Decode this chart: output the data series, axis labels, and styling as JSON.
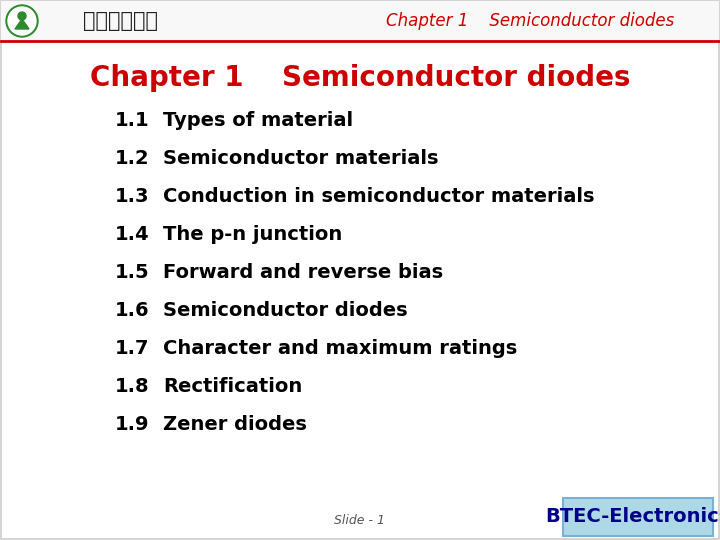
{
  "header_title": "Chapter 1    Semiconductor diodes",
  "header_title_color": "#cc0000",
  "main_title": "Chapter 1    Semiconductor diodes",
  "main_title_color": "#cc0000",
  "main_title_fontsize": 20,
  "items": [
    {
      "num": "1.1",
      "text": "Types of material"
    },
    {
      "num": "1.2",
      "text": "Semiconductor materials"
    },
    {
      "num": "1.3",
      "text": "Conduction in semiconductor materials"
    },
    {
      "num": "1.4",
      "text": "The p-n junction"
    },
    {
      "num": "1.5",
      "text": "Forward and reverse bias"
    },
    {
      "num": "1.6",
      "text": "Semiconductor diodes"
    },
    {
      "num": "1.7",
      "text": "Character and maximum ratings"
    },
    {
      "num": "1.8",
      "text": "Rectification"
    },
    {
      "num": "1.9",
      "text": "Zener diodes"
    }
  ],
  "item_num_color": "#000000",
  "item_text_color": "#000000",
  "item_fontsize": 14,
  "slide_label": "Slide - 1",
  "slide_label_color": "#555555",
  "slide_label_fontsize": 9,
  "btec_label": "BTEC-Electronics",
  "btec_label_color": "#00008b",
  "btec_bg_color": "#add8e6",
  "btec_fontsize": 14,
  "bg_color": "#ffffff",
  "header_red_color": "#cc0000",
  "chinese_text": "广东教育学院",
  "border_color": "#cccccc",
  "logo_green": "#2d8a2d",
  "logo_dark_green": "#1a5c1a"
}
